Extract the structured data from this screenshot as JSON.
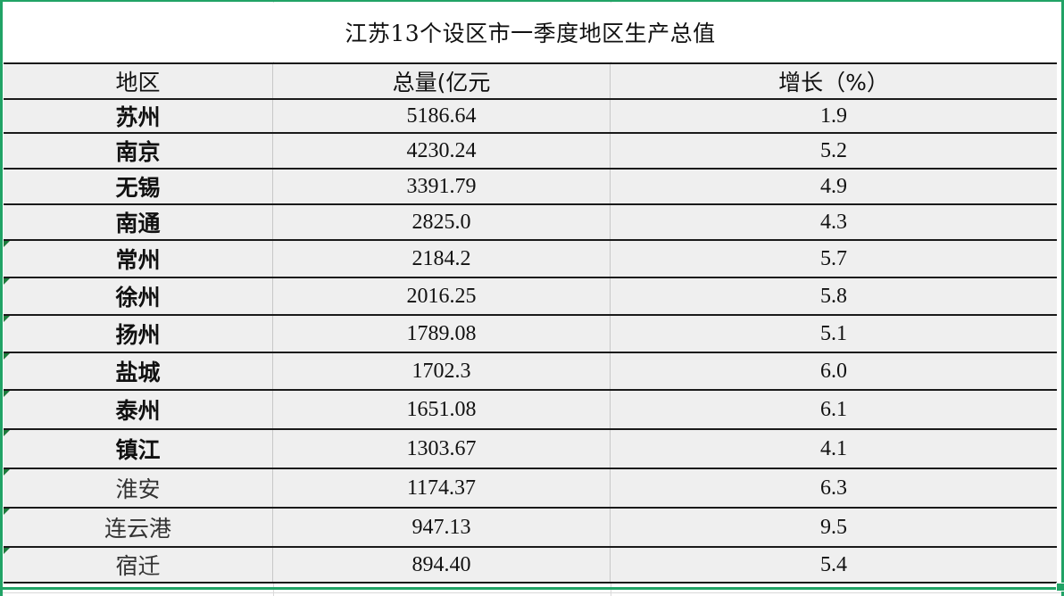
{
  "table": {
    "title": "江苏13个设区市一季度地区生产总值",
    "headers": [
      "地区",
      "总量(亿元",
      "增长（%）"
    ],
    "rows": [
      {
        "region": "苏州",
        "total": "5186.64",
        "growth": "1.9"
      },
      {
        "region": "南京",
        "total": "4230.24",
        "growth": "5.2"
      },
      {
        "region": "无锡",
        "total": "3391.79",
        "growth": "4.9"
      },
      {
        "region": "南通",
        "total": "2825.0",
        "growth": "4.3"
      },
      {
        "region": "常州",
        "total": "2184.2",
        "growth": "5.7"
      },
      {
        "region": "徐州",
        "total": "2016.25",
        "growth": "5.8"
      },
      {
        "region": "扬州",
        "total": "1789.08",
        "growth": "5.1"
      },
      {
        "region": "盐城",
        "total": "1702.3",
        "growth": "6.0"
      },
      {
        "region": "泰州",
        "total": "1651.08",
        "growth": "6.1"
      },
      {
        "region": "镇江",
        "total": "1303.67",
        "growth": "4.1"
      },
      {
        "region": "淮安",
        "total": "1174.37",
        "growth": "6.3"
      },
      {
        "region": "连云港",
        "total": "947.13",
        "growth": "9.5"
      },
      {
        "region": "宿迁",
        "total": "894.40",
        "growth": "5.4"
      }
    ]
  },
  "colors": {
    "selection": "#21a366",
    "cell_fill": "#efefef",
    "border": "#1a1a1a"
  }
}
